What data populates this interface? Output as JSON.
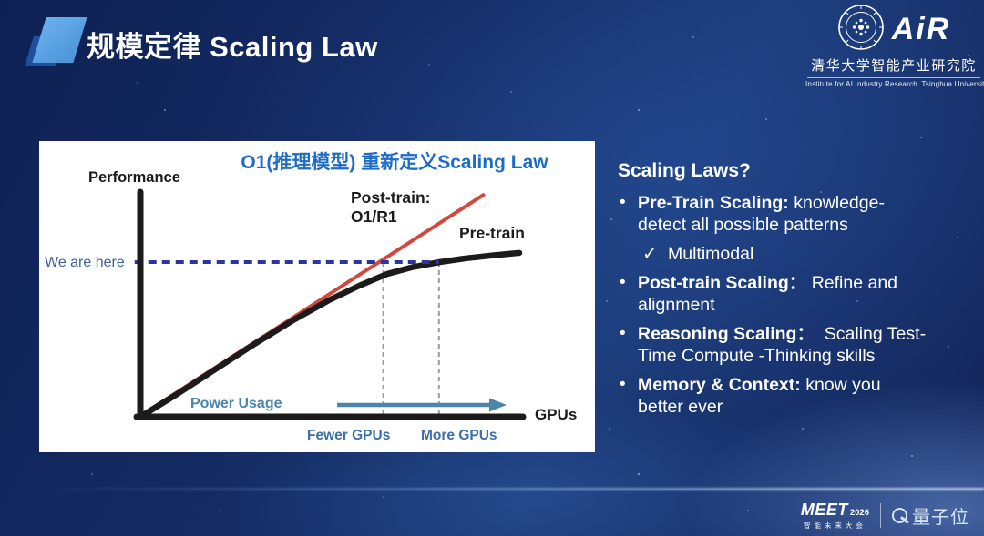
{
  "slide": {
    "title": "规模定律 Scaling Law"
  },
  "air_logo": {
    "acronym": "AiR",
    "cn_name": "清华大学智能产业研究院",
    "en_name": "Institute for AI Industry Research.  Tsinghua University",
    "seal_icon": "tsinghua-university-seal"
  },
  "chart_data": {
    "type": "line",
    "title": "O1(推理模型) 重新定义Scaling Law",
    "xlabel": "GPUs",
    "ylabel": "Performance",
    "axis_style": "qualitative hand-drawn axes, no numeric ticks, normalized 0-1 coordinates",
    "series": [
      {
        "name": "Post-train: O1/R1",
        "color": "#d0493f",
        "shape": "straight-line",
        "x": [
          0.005,
          0.905
        ],
        "y": [
          0.01,
          0.995
        ]
      },
      {
        "name": "Pre-train",
        "color": "#1b1b1b",
        "shape": "saturating-curve",
        "x": [
          0,
          0.1,
          0.2,
          0.3,
          0.4,
          0.5,
          0.58,
          0.65,
          0.72,
          0.79,
          0.86,
          0.93,
          1.0
        ],
        "y": [
          0,
          0.105,
          0.215,
          0.325,
          0.43,
          0.525,
          0.59,
          0.64,
          0.672,
          0.694,
          0.711,
          0.724,
          0.735
        ]
      }
    ],
    "guides": {
      "hline": {
        "label": "We are here",
        "y": 0.694,
        "x0": -0.015,
        "x1": 0.788,
        "color": "#2b35a0",
        "style": "dashed"
      },
      "vlines": [
        {
          "x": 0.641,
          "meaning": "post-train reaches current level (Fewer GPUs)"
        },
        {
          "x": 0.788,
          "meaning": "pre-train reaches current level (More GPUs)"
        }
      ]
    },
    "annotations": {
      "we_are_here": "We are here",
      "post_train_label": "Post-train:\nO1/R1",
      "pre_train_label": "Pre-train",
      "power_usage": "Power Usage",
      "gpus": "GPUs",
      "fewer_gpus": "Fewer GPUs",
      "more_gpus": "More GPUs",
      "arrow_color": "#4d85ad"
    }
  },
  "right_panel": {
    "heading": "Scaling Laws?",
    "bullets": [
      {
        "lead": "Pre-Train Scaling:",
        "rest": " knowledge-\ndetect all possible patterns"
      },
      {
        "lead": "Post-train Scaling：",
        "rest": " Refine and\nalignment"
      },
      {
        "lead": "Reasoning Scaling：",
        "rest": "  Scaling Test-\nTime Compute -Thinking skills"
      },
      {
        "lead": "Memory & Context:",
        "rest": " know you\nbetter ever"
      }
    ],
    "sub_item": {
      "check": "✓",
      "text": "Multimodal"
    }
  },
  "footer": {
    "meet": {
      "name": "MEET",
      "year": "2026",
      "tagline": "智能未来大会"
    },
    "qbit": {
      "name": "量子位",
      "icon": "qbitai-q-ring"
    }
  }
}
